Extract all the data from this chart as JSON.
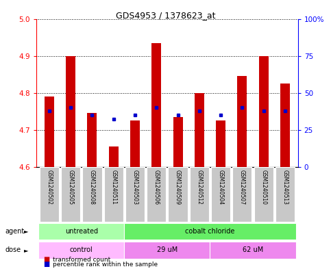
{
  "title": "GDS4953 / 1378623_at",
  "samples": [
    "GSM1240502",
    "GSM1240505",
    "GSM1240508",
    "GSM1240511",
    "GSM1240503",
    "GSM1240506",
    "GSM1240509",
    "GSM1240512",
    "GSM1240504",
    "GSM1240507",
    "GSM1240510",
    "GSM1240513"
  ],
  "transformed_counts": [
    4.79,
    4.9,
    4.745,
    4.655,
    4.725,
    4.935,
    4.735,
    4.8,
    4.725,
    4.845,
    4.9,
    4.825
  ],
  "percentile_ranks": [
    38,
    40,
    35,
    32,
    35,
    40,
    35,
    38,
    35,
    40,
    38,
    38
  ],
  "ylim_left": [
    4.6,
    5.0
  ],
  "ylim_right": [
    0,
    100
  ],
  "yticks_left": [
    4.6,
    4.7,
    4.8,
    4.9,
    5.0
  ],
  "yticks_right": [
    0,
    25,
    50,
    75,
    100
  ],
  "ytick_labels_right": [
    "0",
    "25",
    "50",
    "75",
    "100%"
  ],
  "baseline": 4.6,
  "agent_groups": [
    {
      "label": "untreated",
      "start": 0,
      "end": 4,
      "color": "#AAFFAA"
    },
    {
      "label": "cobalt chloride",
      "start": 4,
      "end": 12,
      "color": "#66EE66"
    }
  ],
  "dose_groups": [
    {
      "label": "control",
      "start": 0,
      "end": 4,
      "color": "#FFBBFF"
    },
    {
      "label": "29 uM",
      "start": 4,
      "end": 8,
      "color": "#EE88EE"
    },
    {
      "label": "62 uM",
      "start": 8,
      "end": 12,
      "color": "#EE88EE"
    }
  ],
  "bar_color": "#CC0000",
  "dot_color": "#0000CC",
  "bg_color": "#FFFFFF",
  "plot_bg_color": "#FFFFFF",
  "label_bg_color": "#C8C8C8",
  "grid_color": "#000000",
  "legend_items": [
    {
      "label": "transformed count",
      "color": "#CC0000"
    },
    {
      "label": "percentile rank within the sample",
      "color": "#0000CC"
    }
  ],
  "bar_width": 0.45,
  "left_axis_color": "red",
  "right_axis_color": "blue"
}
